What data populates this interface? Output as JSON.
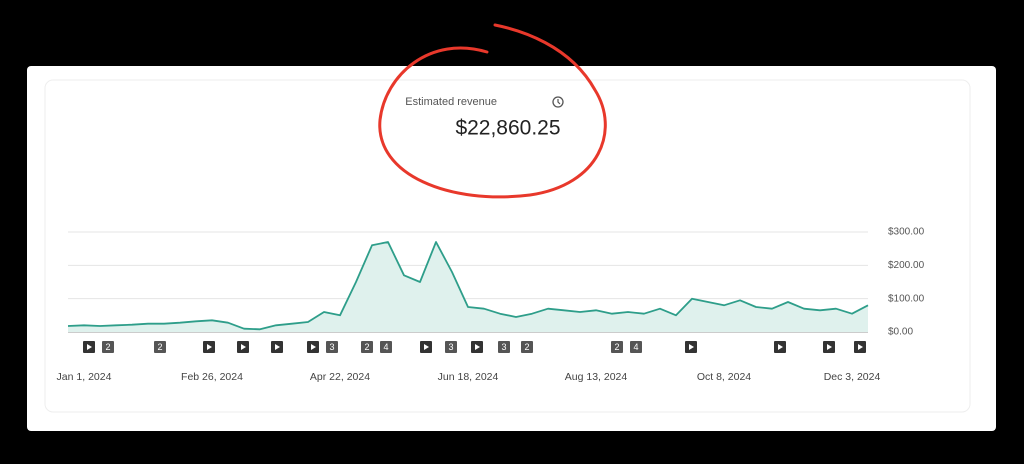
{
  "header": {
    "title": "Estimated revenue",
    "total": "$22,860.25"
  },
  "video_markers": [
    "2",
    "2",
    "3",
    "2",
    "4",
    "3",
    "3",
    "2",
    "2",
    "4"
  ],
  "chart_data": {
    "type": "area",
    "color": "#2e9e8a",
    "fill": "#dff1ed",
    "grid": true,
    "categories": [
      null,
      "Jan 1, 2024",
      null,
      null,
      null,
      null,
      null,
      null,
      null,
      "Feb 26, 2024",
      null,
      null,
      null,
      null,
      null,
      null,
      null,
      "Apr 22, 2024",
      null,
      null,
      null,
      null,
      null,
      null,
      null,
      "Jun 18, 2024",
      null,
      null,
      null,
      null,
      null,
      null,
      null,
      "Aug 13, 2024",
      null,
      null,
      null,
      null,
      null,
      null,
      null,
      "Oct 8, 2024",
      null,
      null,
      null,
      null,
      null,
      null,
      null,
      "Dec 3, 2024",
      null
    ],
    "values": [
      18,
      20,
      18,
      20,
      22,
      25,
      25,
      28,
      32,
      35,
      28,
      10,
      8,
      20,
      25,
      30,
      60,
      50,
      150,
      260,
      270,
      170,
      150,
      270,
      180,
      75,
      70,
      55,
      45,
      55,
      70,
      65,
      60,
      65,
      55,
      60,
      55,
      70,
      50,
      100,
      90,
      80,
      95,
      75,
      70,
      90,
      70,
      65,
      70,
      55,
      80
    ],
    "ylim": [
      0,
      300
    ],
    "yticks": [
      {
        "value": 0,
        "label": "$0.00"
      },
      {
        "value": 100,
        "label": "$100.00"
      },
      {
        "value": 200,
        "label": "$200.00"
      },
      {
        "value": 300,
        "label": "$300.00"
      }
    ]
  }
}
